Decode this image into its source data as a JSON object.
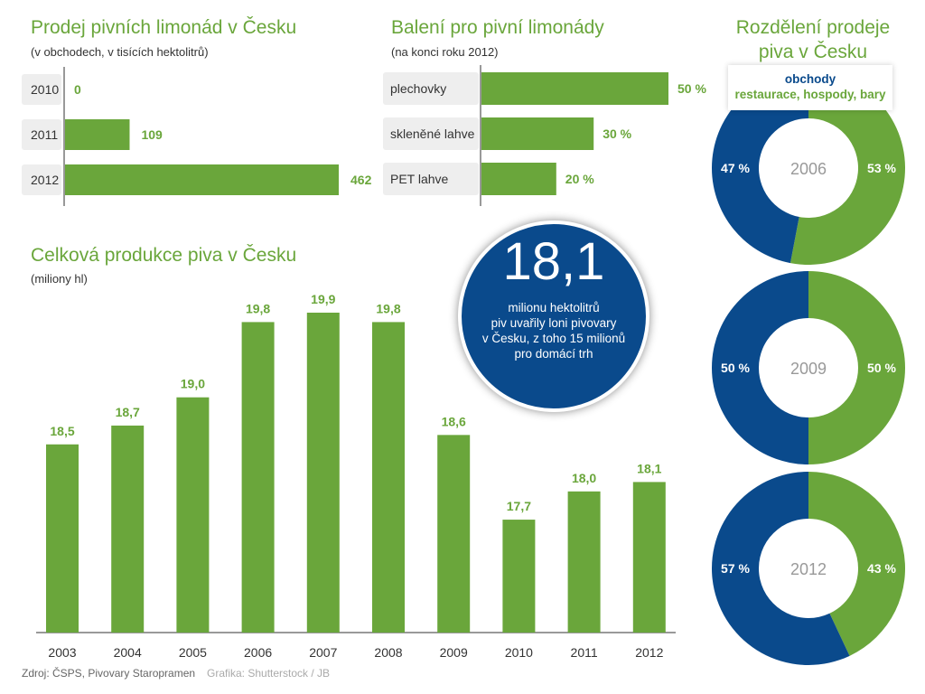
{
  "panel_lemonade": {
    "title": "Prodej pivních limonád v Česku",
    "subtitle": "(v obchodech, v tisících hektolitrů)"
  },
  "panel_packaging": {
    "title": "Balení pro pivní limonády",
    "subtitle": "(na konci roku 2012)"
  },
  "panel_production": {
    "title": "Celková produkce piva v Česku",
    "subtitle": "(miliony hl)"
  },
  "panel_share": {
    "title_line1": "Rozdělení prodeje",
    "title_line2": "piva v Česku",
    "legend_shops": "obchody",
    "legend_restaurants": "restaurace, hospody, bary"
  },
  "highlight": {
    "big_number": "18,1",
    "text_line1": "milionu hektolitrů",
    "text_line2": "piv uvařily loni pivovary",
    "text_line3": "v Česku, z toho 15 milionů",
    "text_line4": "pro domácí trh"
  },
  "footer": {
    "source": "Zdroj: ČSPS, Pivovary Staropramen",
    "credit": "Grafika: Shutterstock / JB"
  },
  "colors": {
    "green": "#6aa63b",
    "blue": "#0a4a8c",
    "tag_bg": "#eeeeee"
  },
  "chart_data": [
    {
      "type": "bar",
      "orientation": "horizontal",
      "title": "Prodej pivních limonád v Česku",
      "subtitle": "(v obchodech, v tisících hektolitrů)",
      "categories": [
        "2010",
        "2011",
        "2012"
      ],
      "values": [
        0,
        109,
        462
      ],
      "value_labels": [
        "0",
        "109",
        "462"
      ],
      "xlim": [
        0,
        462
      ]
    },
    {
      "type": "bar",
      "orientation": "horizontal",
      "title": "Balení pro pivní limonády",
      "subtitle": "(na konci roku 2012)",
      "categories": [
        "plechovky",
        "skleněné lahve",
        "PET lahve"
      ],
      "values": [
        50,
        30,
        20
      ],
      "value_labels": [
        "50 %",
        "30 %",
        "20 %"
      ],
      "xlim": [
        0,
        50
      ]
    },
    {
      "type": "bar",
      "title": "Celková produkce piva v Česku",
      "subtitle": "(miliony hl)",
      "categories": [
        "2003",
        "2004",
        "2005",
        "2006",
        "2007",
        "2008",
        "2009",
        "2010",
        "2011",
        "2012"
      ],
      "values": [
        18.5,
        18.7,
        19.0,
        19.8,
        19.9,
        19.8,
        18.6,
        17.7,
        18.0,
        18.1
      ],
      "value_labels": [
        "18,5",
        "18,7",
        "19,0",
        "19,8",
        "19,9",
        "19,8",
        "18,6",
        "17,7",
        "18,0",
        "18,1"
      ],
      "ylim": [
        16.5,
        19.9
      ]
    },
    {
      "type": "pie",
      "title": "Rozdělení prodeje piva v Česku",
      "legend": [
        "obchody",
        "restaurace, hospody, bary"
      ],
      "donuts": [
        {
          "year": "2006",
          "shops": 47,
          "restaurants": 53,
          "shops_label": "47 %",
          "restaurants_label": "53 %"
        },
        {
          "year": "2009",
          "shops": 50,
          "restaurants": 50,
          "shops_label": "50 %",
          "restaurants_label": "50 %"
        },
        {
          "year": "2012",
          "shops": 57,
          "restaurants": 43,
          "shops_label": "57 %",
          "restaurants_label": "43 %"
        }
      ]
    }
  ]
}
